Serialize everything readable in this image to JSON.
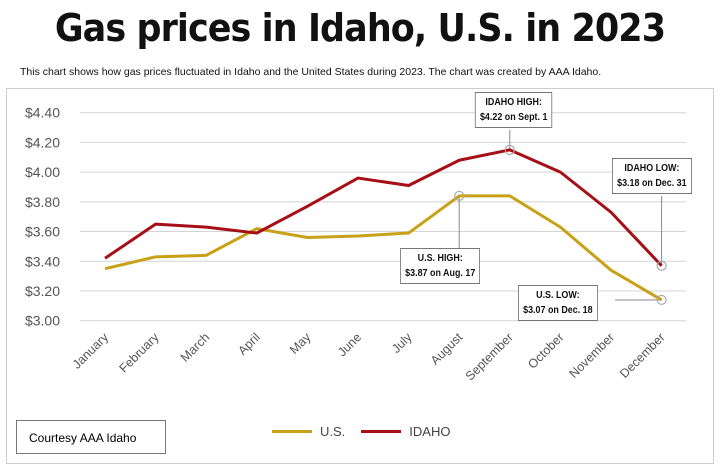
{
  "chart_data": {
    "type": "line",
    "title": "Gas prices in Idaho, U.S. in 2023",
    "subtitle": "This chart shows how gas prices fluctuated in Idaho and the United States during 2023. The chart was created by AAA Idaho.",
    "categories": [
      "January",
      "February",
      "March",
      "April",
      "May",
      "June",
      "July",
      "August",
      "September",
      "October",
      "November",
      "December"
    ],
    "yticks": [
      "$3.00",
      "$3.20",
      "$3.40",
      "$3.60",
      "$3.80",
      "$4.00",
      "$4.20",
      "$4.40"
    ],
    "ylim": [
      3.0,
      4.4
    ],
    "grid": true,
    "legend": "bottom",
    "series": [
      {
        "name": "U.S.",
        "color": "#c9a118",
        "values": [
          3.35,
          3.43,
          3.44,
          3.62,
          3.56,
          3.57,
          3.59,
          3.84,
          3.84,
          3.63,
          3.34,
          3.14
        ]
      },
      {
        "name": "IDAHO",
        "color": "#a50f15",
        "values": [
          3.42,
          3.65,
          3.63,
          3.59,
          3.77,
          3.96,
          3.91,
          4.08,
          4.15,
          4.0,
          3.73,
          3.37
        ]
      }
    ],
    "annotations": [
      {
        "line1": "IDAHO HIGH:",
        "line2": "$4.22 on Sept. 1",
        "month": "September",
        "series": "IDAHO"
      },
      {
        "line1": "IDAHO LOW:",
        "line2": "$3.18 on Dec. 31",
        "month": "December",
        "series": "IDAHO"
      },
      {
        "line1": "U.S. HIGH:",
        "line2": "$3.87 on Aug. 17",
        "month": "August",
        "series": "U.S."
      },
      {
        "line1": "U.S. LOW:",
        "line2": "$3.07 on Dec. 18",
        "month": "December",
        "series": "U.S."
      }
    ],
    "source": "Courtesy AAA Idaho"
  }
}
